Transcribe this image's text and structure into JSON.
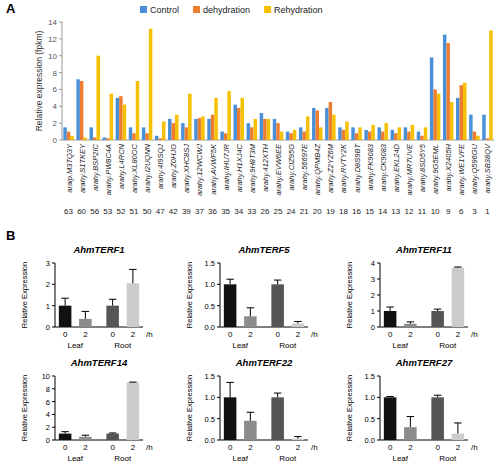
{
  "chart_data": [
    {
      "type": "bar",
      "panel_label": "A",
      "y_label": "Relative expression (fpkm)",
      "legend": "top",
      "ylim": [
        0,
        14
      ],
      "yticks": [
        0,
        2,
        4,
        6,
        8,
        10,
        12,
        14
      ],
      "categories": [
        "araip.M3TQ3Y",
        "arahy.S1TKEY",
        "arahy.BSP2IC",
        "arahy.PW8C4A",
        "arahy.L4RCN",
        "arahy.XL80OC",
        "arahy.I2UQNN",
        "arahy.4I9SQJ",
        "arahy.Z0HJG",
        "arahy.XHC8SJ",
        "arahy.12WCWJ",
        "arahy.AVWF5K",
        "arahy.IHU7JR",
        "arahy.H1XJ4C",
        "arahy.9H8T3M",
        "arahy.412XTH",
        "arahy.EVW6EE",
        "arahy.CIZ95G",
        "arahy.56697E",
        "arahy.QPMB4Z",
        "arahy.Z2YZ6M",
        "arahy.RVTY2K",
        "arahy.D8S9BT",
        "arahy.FK9083",
        "arahy.CK9083",
        "arahy.EKL24D",
        "arahy.MR7UVE",
        "arahy.8SD5Y5",
        "arahy.9G5EML",
        "arahy.X2405H",
        "arahy.WE1VFE",
        "arahy.Q596GU",
        "arahy.SB38QV"
      ],
      "category_numbers": [
        63,
        60,
        56,
        53,
        52,
        51,
        50,
        47,
        42,
        39,
        37,
        36,
        35,
        34,
        33,
        26,
        25,
        24,
        21,
        20,
        19,
        18,
        16,
        15,
        14,
        13,
        12,
        11,
        10,
        9,
        6,
        3,
        1
      ],
      "series": [
        {
          "name": "Control",
          "color": "#4a90d9",
          "values": [
            1.5,
            7.2,
            1.5,
            0.3,
            5.0,
            1.5,
            1.5,
            0.5,
            2.5,
            2.0,
            2.5,
            2.5,
            1.0,
            4.2,
            2.0,
            3.2,
            2.5,
            1.0,
            1.5,
            3.8,
            3.8,
            1.5,
            1.5,
            1.2,
            1.5,
            1.2,
            1.5,
            1.0,
            9.8,
            12.5,
            5.0,
            3.0,
            3.0
          ]
        },
        {
          "name": "dehydration",
          "color": "#ed7d31",
          "values": [
            1.0,
            7.0,
            0.3,
            0.2,
            5.2,
            0.8,
            0.8,
            0.2,
            2.0,
            1.5,
            2.6,
            3.0,
            0.8,
            3.8,
            1.5,
            2.5,
            2.0,
            0.8,
            1.0,
            3.5,
            4.5,
            1.2,
            0.8,
            1.0,
            1.0,
            0.8,
            1.0,
            0.5,
            6.0,
            11.5,
            6.5,
            1.0,
            0.2
          ]
        },
        {
          "name": "Rehydration",
          "color": "#f5c000",
          "values": [
            0.5,
            0.3,
            10.0,
            5.5,
            4.2,
            7.0,
            13.2,
            2.2,
            3.0,
            5.5,
            2.8,
            5.0,
            5.8,
            5.0,
            2.5,
            2.5,
            1.0,
            1.2,
            2.8,
            1.5,
            3.0,
            2.2,
            1.5,
            1.8,
            2.0,
            1.5,
            1.8,
            1.5,
            5.5,
            4.5,
            6.8,
            0.5,
            13.0
          ]
        }
      ]
    },
    {
      "type": "bar",
      "panel_label": "B",
      "title": "AhmTERF1",
      "y_label": "Relative Expression",
      "categories": [
        "0",
        "2",
        "0",
        "2"
      ],
      "groups": [
        "Leaf",
        "Root"
      ],
      "x_unit": "/h",
      "colors": [
        "#111111",
        "#8c8c8c",
        "#555555",
        "#cccccc"
      ],
      "ylim": [
        0,
        3
      ],
      "yticks": [
        0,
        1,
        2,
        3
      ],
      "values": [
        1.0,
        0.38,
        1.0,
        2.05
      ],
      "errors": [
        0.35,
        0.35,
        0.3,
        0.65
      ]
    },
    {
      "type": "bar",
      "title": "AhmTERF5",
      "y_label": "Relative Expression",
      "categories": [
        "0",
        "2",
        "0",
        "2"
      ],
      "groups": [
        "Leaf",
        "Root"
      ],
      "x_unit": "/h",
      "colors": [
        "#111111",
        "#8c8c8c",
        "#555555",
        "#cccccc"
      ],
      "ylim": [
        0,
        1.5
      ],
      "yticks": [
        {
          "value": 0,
          "label": "0.0"
        },
        {
          "value": 0.5,
          "label": "0.5"
        },
        {
          "value": 1,
          "label": "1.0"
        },
        {
          "value": 1.5,
          "label": "1.5"
        }
      ],
      "values": [
        1.0,
        0.25,
        1.0,
        0.08
      ],
      "errors": [
        0.12,
        0.2,
        0.1,
        0.05
      ]
    },
    {
      "type": "bar",
      "title": "AhmTERF11",
      "y_label": "Relative Expression",
      "categories": [
        "0",
        "2",
        "0",
        "2"
      ],
      "groups": [
        "Leaf",
        "Root"
      ],
      "x_unit": "/h",
      "colors": [
        "#111111",
        "#8c8c8c",
        "#555555",
        "#cccccc"
      ],
      "ylim": [
        0,
        4
      ],
      "yticks": [
        0,
        1,
        2,
        3,
        4
      ],
      "values": [
        1.0,
        0.2,
        1.0,
        3.7
      ],
      "errors": [
        0.25,
        0.12,
        0.12,
        0.05
      ]
    },
    {
      "type": "bar",
      "title": "AhmTERF14",
      "y_label": "Relative Expression",
      "categories": [
        "0",
        "2",
        "0",
        "2"
      ],
      "groups": [
        "Leaf",
        "Root"
      ],
      "x_unit": "/h",
      "colors": [
        "#111111",
        "#8c8c8c",
        "#555555",
        "#cccccc"
      ],
      "ylim": [
        0,
        10
      ],
      "yticks": [
        0,
        2,
        4,
        6,
        8,
        10
      ],
      "values": [
        1.0,
        0.5,
        1.0,
        9.0
      ],
      "errors": [
        0.3,
        0.25,
        0.1,
        0.05
      ]
    },
    {
      "type": "bar",
      "title": "AhmTERF22",
      "y_label": "Relative Expression",
      "categories": [
        "0",
        "2",
        "0",
        "2"
      ],
      "groups": [
        "Leaf",
        "Root"
      ],
      "x_unit": "/h",
      "colors": [
        "#111111",
        "#8c8c8c",
        "#555555",
        "#cccccc"
      ],
      "ylim": [
        0,
        1.5
      ],
      "yticks": [
        {
          "value": 0,
          "label": "0.0"
        },
        {
          "value": 0.5,
          "label": "0.5"
        },
        {
          "value": 1,
          "label": "1.0"
        },
        {
          "value": 1.5,
          "label": "1.5"
        }
      ],
      "values": [
        1.0,
        0.45,
        1.0,
        0.03
      ],
      "errors": [
        0.35,
        0.2,
        0.1,
        0.05
      ]
    },
    {
      "type": "bar",
      "title": "AhmTERF27",
      "y_label": "Relative Expression",
      "categories": [
        "0",
        "2",
        "0",
        "2"
      ],
      "groups": [
        "Leaf",
        "Root"
      ],
      "x_unit": "/h",
      "colors": [
        "#111111",
        "#8c8c8c",
        "#555555",
        "#cccccc"
      ],
      "ylim": [
        0,
        1.5
      ],
      "yticks": [
        {
          "value": 0,
          "label": "0.0"
        },
        {
          "value": 0.5,
          "label": "0.5"
        },
        {
          "value": 1,
          "label": "1.0"
        },
        {
          "value": 1.5,
          "label": "1.5"
        }
      ],
      "values": [
        1.0,
        0.3,
        1.0,
        0.15
      ],
      "errors": [
        0.02,
        0.25,
        0.05,
        0.25
      ]
    }
  ]
}
